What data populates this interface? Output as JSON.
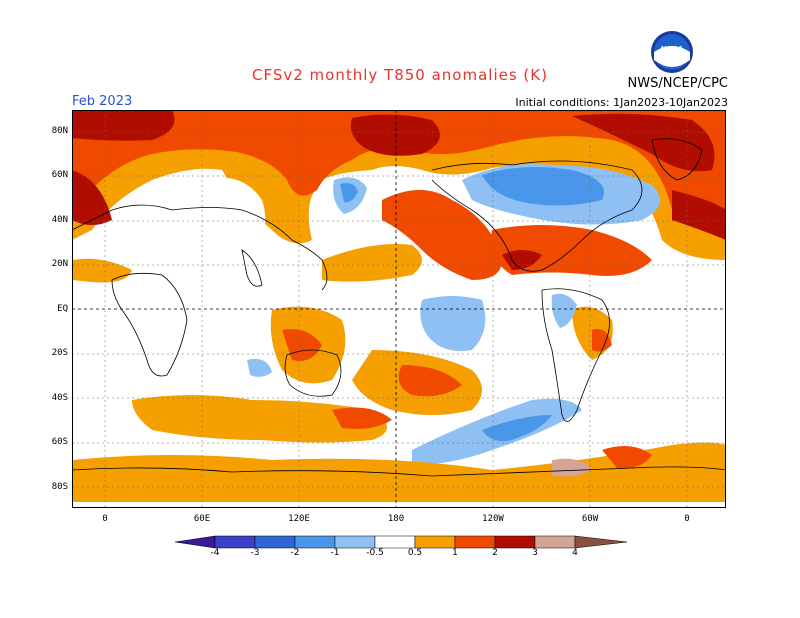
{
  "header": {
    "title": "CFSv2 monthly T850 anomalies (K)",
    "period": "Feb 2023",
    "initial_conditions": "Initial conditions: 1Jan2023-10Jan2023",
    "organization": "NWS/NCEP/CPC",
    "logo_text": "NOAA"
  },
  "map": {
    "lat_labels": [
      "80N",
      "60N",
      "40N",
      "20N",
      "EQ",
      "20S",
      "40S",
      "60S",
      "80S"
    ],
    "lon_labels": [
      "0",
      "60E",
      "120E",
      "180",
      "120W",
      "60W",
      "0"
    ]
  },
  "colorbar": {
    "labels": [
      "-4",
      "-3",
      "-2",
      "-1",
      "-0.5",
      "0.5",
      "1",
      "2",
      "3",
      "4"
    ],
    "colors": [
      "#3a1a9a",
      "#3a40c8",
      "#2e66d8",
      "#4a96ea",
      "#8ec0f4",
      "#ffffff",
      "#f5a000",
      "#f04a00",
      "#b00c00",
      "#d4a496",
      "#8a5040"
    ]
  },
  "colors": {
    "pos_light": "#f5a000",
    "pos_med": "#f04a00",
    "pos_dark": "#b00c00",
    "neg_light": "#8ec0f4",
    "neg_med": "#4a96ea"
  }
}
